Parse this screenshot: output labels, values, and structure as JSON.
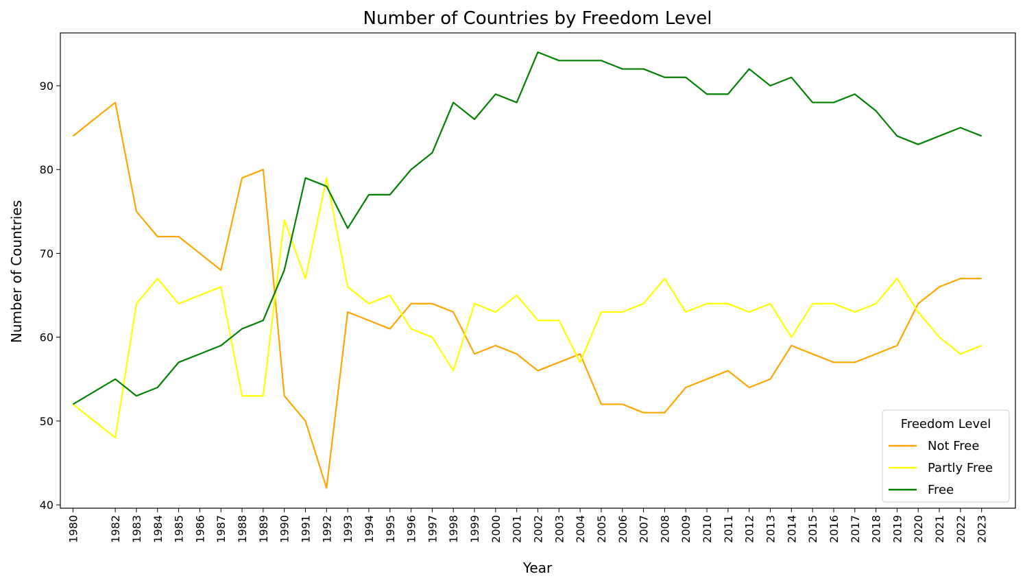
{
  "chart_data": {
    "type": "line",
    "title": "Number of Countries by Freedom Level",
    "xlabel": "Year",
    "ylabel": "Number of Countries",
    "x": [
      1980,
      1982,
      1983,
      1984,
      1985,
      1986,
      1987,
      1988,
      1989,
      1990,
      1991,
      1992,
      1993,
      1994,
      1995,
      1996,
      1997,
      1998,
      1999,
      2000,
      2001,
      2002,
      2003,
      2004,
      2005,
      2006,
      2007,
      2008,
      2009,
      2010,
      2011,
      2012,
      2013,
      2014,
      2015,
      2016,
      2017,
      2018,
      2019,
      2020,
      2021,
      2022,
      2023
    ],
    "xticks": [
      "1980",
      "1982",
      "1983",
      "1984",
      "1985",
      "1986",
      "1987",
      "1988",
      "1989",
      "1990",
      "1991",
      "1992",
      "1993",
      "1994",
      "1995",
      "1996",
      "1997",
      "1998",
      "1999",
      "2000",
      "2001",
      "2002",
      "2003",
      "2004",
      "2005",
      "2006",
      "2007",
      "2008",
      "2009",
      "2010",
      "2011",
      "2012",
      "2013",
      "2014",
      "2015",
      "2016",
      "2017",
      "2018",
      "2019",
      "2020",
      "2021",
      "2022",
      "2023"
    ],
    "xlim": [
      1979.4,
      2024.6
    ],
    "ylim": [
      39.6,
      96.3
    ],
    "yticks": [
      40,
      50,
      60,
      70,
      80,
      90
    ],
    "grid": false,
    "series": [
      {
        "name": "Not Free",
        "color": "#ffa500",
        "values": [
          84,
          88,
          75,
          72,
          72,
          70,
          68,
          79,
          80,
          53,
          50,
          42,
          63,
          62,
          61,
          64,
          64,
          63,
          58,
          59,
          58,
          56,
          57,
          58,
          52,
          52,
          51,
          51,
          54,
          55,
          56,
          54,
          55,
          59,
          58,
          57,
          57,
          58,
          59,
          64,
          66,
          67,
          67
        ]
      },
      {
        "name": "Partly Free",
        "color": "#ffff00",
        "values": [
          52,
          48,
          64,
          67,
          64,
          65,
          66,
          53,
          53,
          74,
          67,
          79,
          66,
          64,
          65,
          61,
          60,
          56,
          64,
          63,
          65,
          62,
          62,
          57,
          63,
          63,
          64,
          67,
          63,
          64,
          64,
          63,
          64,
          60,
          64,
          64,
          63,
          64,
          67,
          63,
          60,
          58,
          59
        ]
      },
      {
        "name": "Free",
        "color": "#008000",
        "values": [
          52,
          55,
          53,
          54,
          57,
          58,
          59,
          61,
          62,
          68,
          79,
          78,
          73,
          77,
          77,
          80,
          82,
          88,
          86,
          89,
          88,
          94,
          93,
          93,
          93,
          92,
          92,
          91,
          91,
          89,
          89,
          92,
          90,
          91,
          88,
          88,
          89,
          87,
          84,
          83,
          84,
          85,
          84
        ]
      }
    ],
    "legend": {
      "title": "Freedom Level",
      "placement": "lower-right"
    }
  }
}
